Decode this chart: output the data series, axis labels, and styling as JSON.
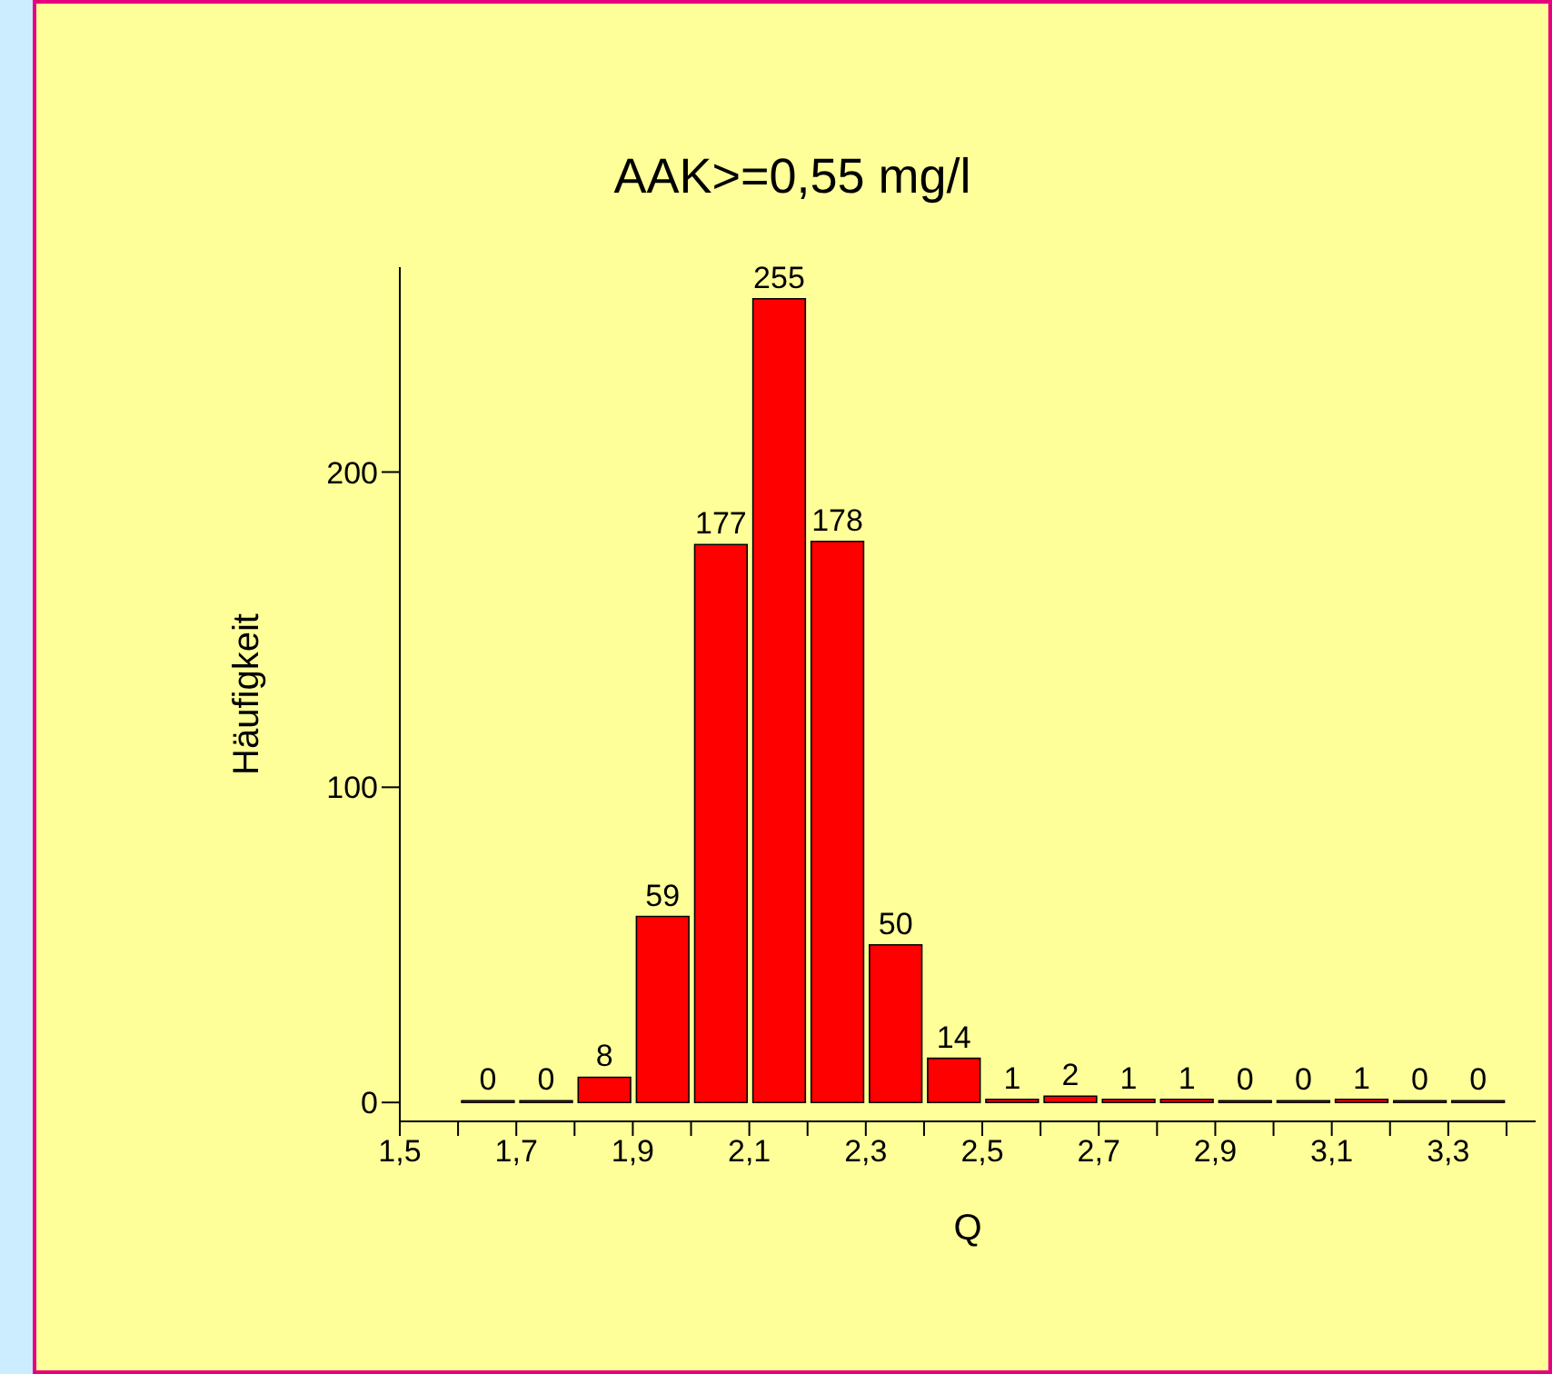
{
  "chart_data": {
    "type": "histogram",
    "title": "AAK>=0,55 mg/l",
    "xlabel": "Q",
    "ylabel": "Häufigkeit",
    "bins": [
      1.6,
      1.7,
      1.8,
      1.9,
      2.0,
      2.1,
      2.2,
      2.3,
      2.4,
      2.5,
      2.6,
      2.7,
      2.8,
      2.9,
      3.0,
      3.1,
      3.2,
      3.3,
      3.4
    ],
    "values": [
      0,
      0,
      8,
      59,
      177,
      255,
      178,
      50,
      14,
      1,
      2,
      1,
      1,
      0,
      0,
      1,
      0,
      0
    ],
    "color": "#ff0000",
    "data_labels": true,
    "xlim": [
      1.5,
      3.45
    ],
    "xticks": [
      {
        "value": 1.5,
        "label": "1,5"
      },
      {
        "value": 1.6,
        "label": null
      },
      {
        "value": 1.7,
        "label": "1,7"
      },
      {
        "value": 1.8,
        "label": null
      },
      {
        "value": 1.9,
        "label": "1,9"
      },
      {
        "value": 2.0,
        "label": null
      },
      {
        "value": 2.1,
        "label": "2,1"
      },
      {
        "value": 2.2,
        "label": null
      },
      {
        "value": 2.3,
        "label": "2,3"
      },
      {
        "value": 2.4,
        "label": null
      },
      {
        "value": 2.5,
        "label": "2,5"
      },
      {
        "value": 2.6,
        "label": null
      },
      {
        "value": 2.7,
        "label": "2,7"
      },
      {
        "value": 2.8,
        "label": null
      },
      {
        "value": 2.9,
        "label": "2,9"
      },
      {
        "value": 3.0,
        "label": null
      },
      {
        "value": 3.1,
        "label": "3,1"
      },
      {
        "value": 3.2,
        "label": null
      },
      {
        "value": 3.3,
        "label": "3,3"
      },
      {
        "value": 3.4,
        "label": null
      }
    ],
    "ylim": [
      -6,
      265
    ],
    "yticks": [
      0,
      100,
      200
    ]
  }
}
